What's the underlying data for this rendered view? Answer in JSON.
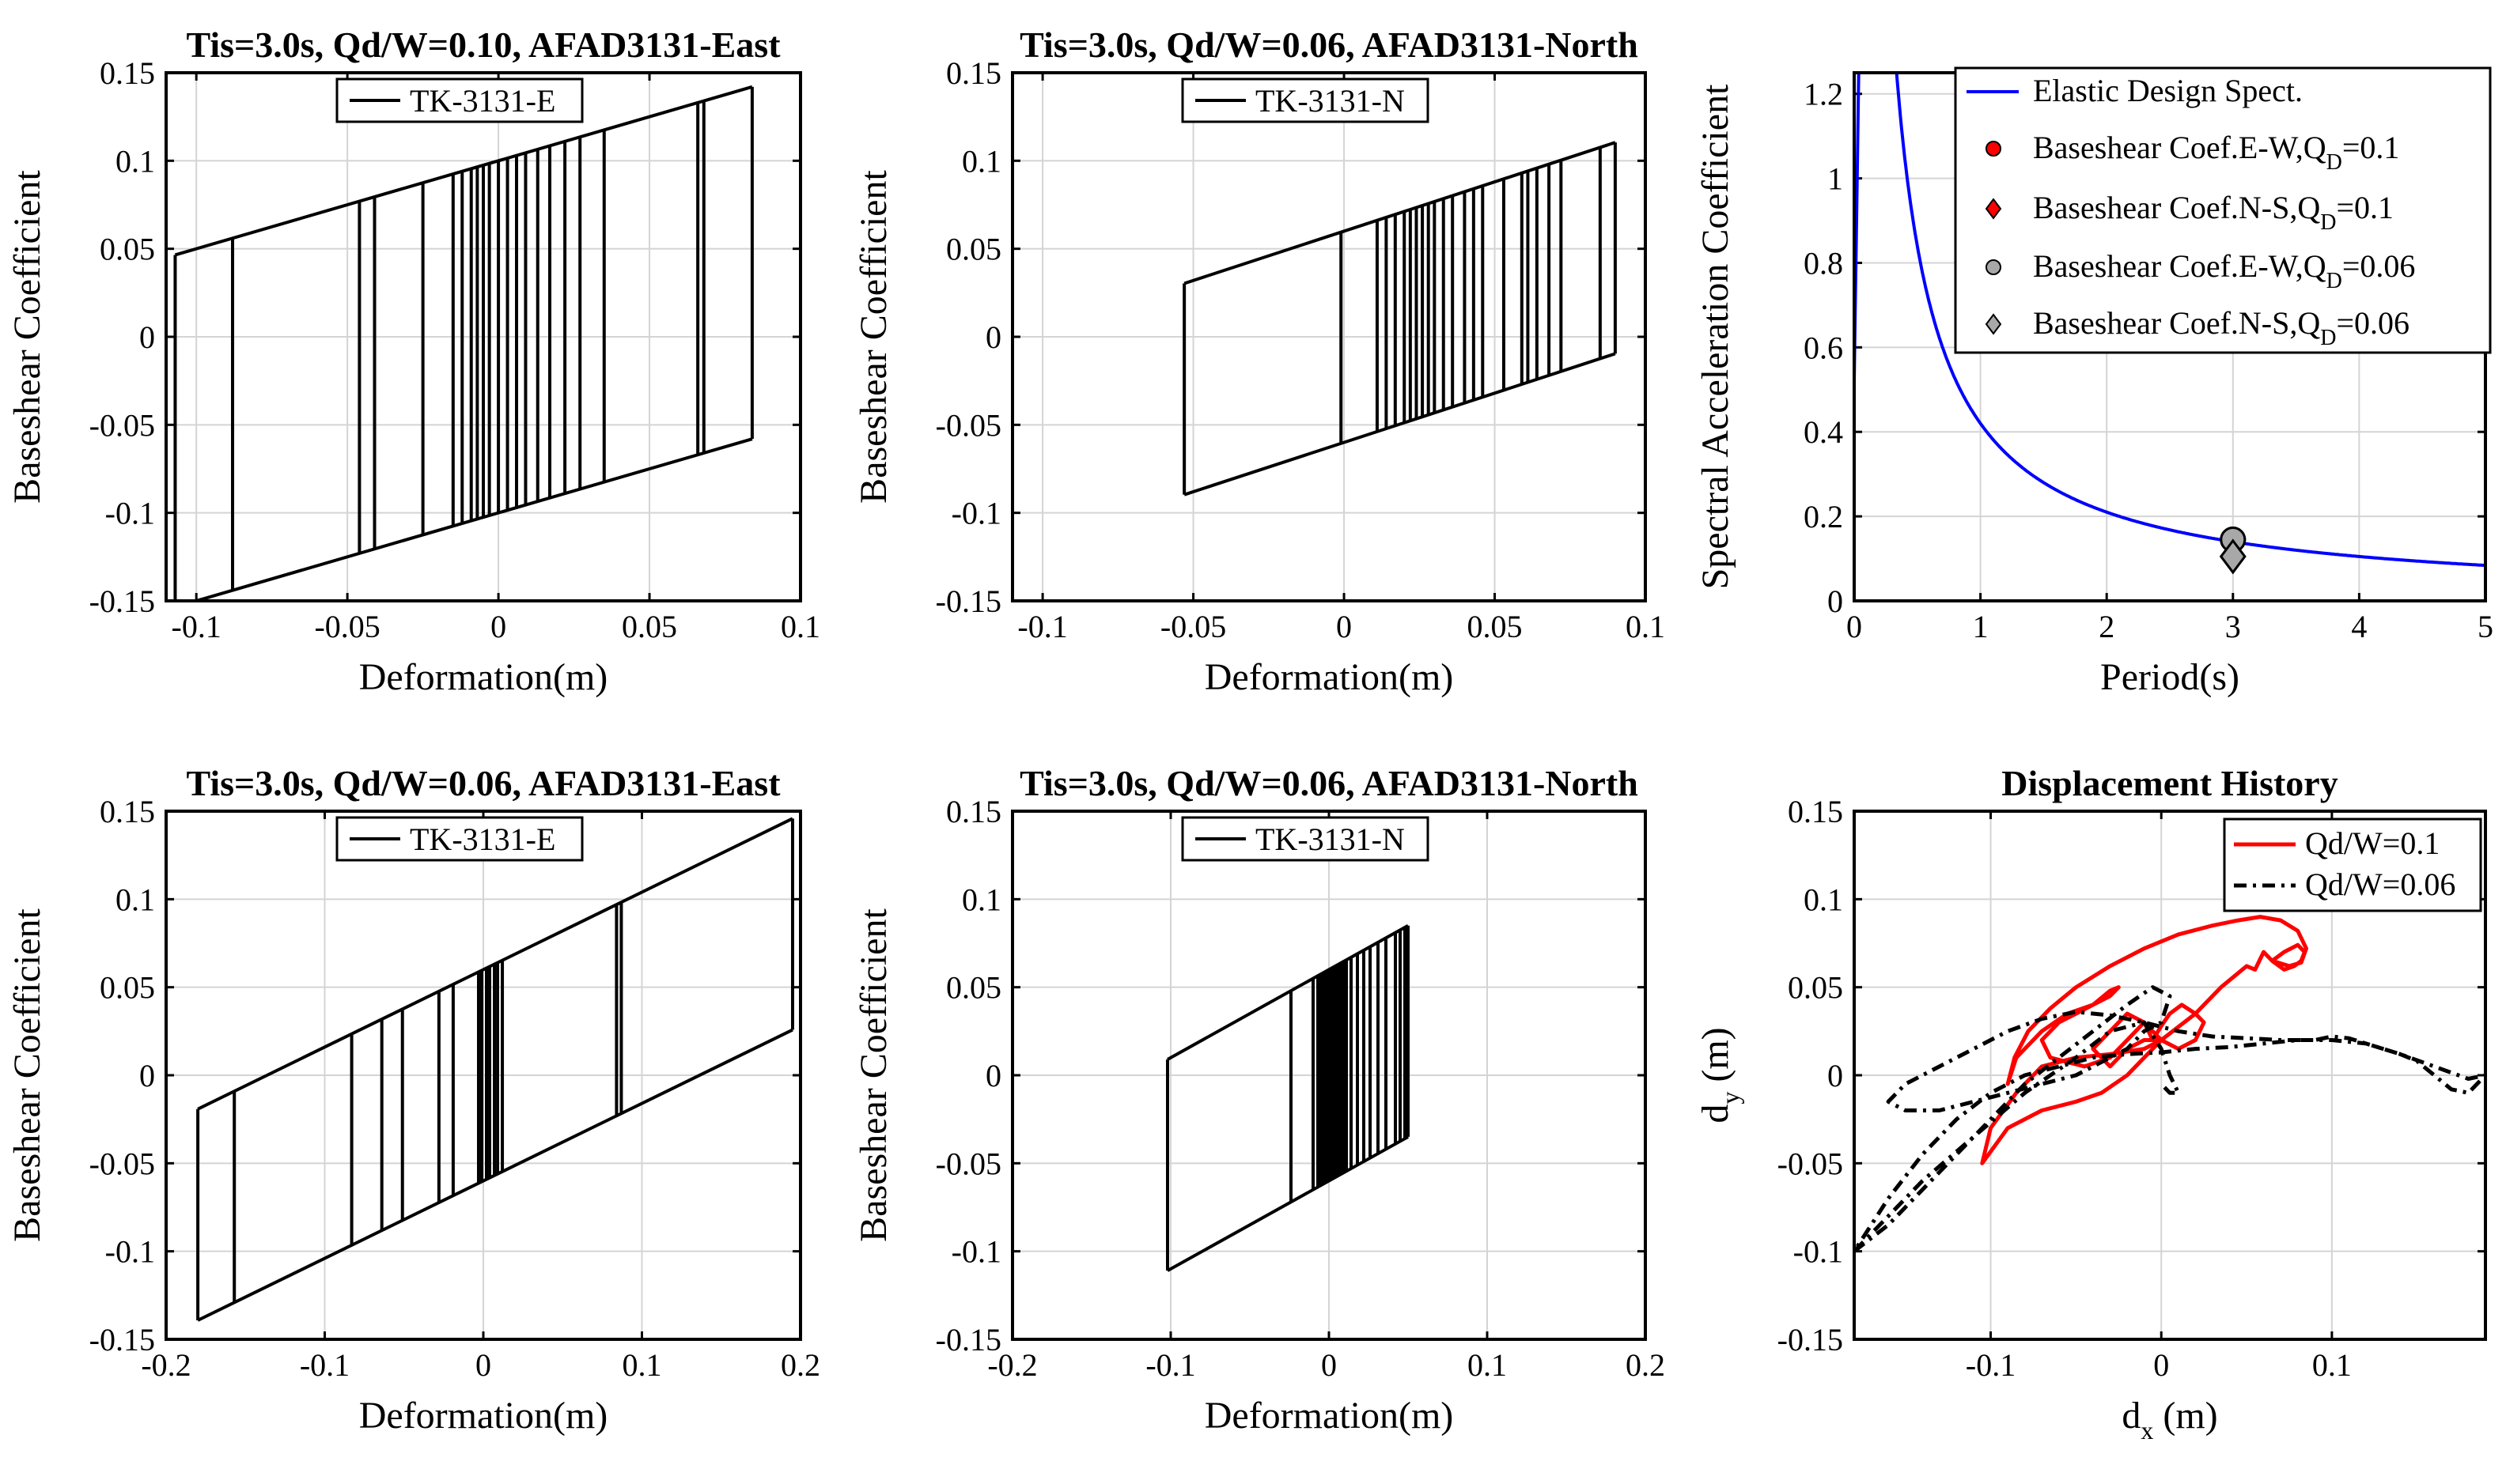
{
  "chart_data": [
    {
      "type": "line",
      "title": "Tis=3.0s, Qd/W=0.10, AFAD3131-East",
      "xlabel": "Deformation(m)",
      "ylabel": "Baseshear Coefficient",
      "xlim": [
        -0.11,
        0.1
      ],
      "ylim": [
        -0.15,
        0.15
      ],
      "xticks": [
        -0.1,
        -0.05,
        0,
        0.05,
        0.1
      ],
      "xtick_labels": [
        "-0.1",
        "-0.05",
        "0",
        "0.05",
        "0.1"
      ],
      "yticks": [
        -0.15,
        -0.1,
        -0.05,
        0,
        0.05,
        0.1,
        0.15
      ],
      "ytick_labels": [
        "-0.15",
        "-0.1",
        "-0.05",
        "0",
        "0.05",
        "0.1",
        "0.15"
      ],
      "grid": true,
      "legend": {
        "position": "top-center",
        "entries": [
          "TK-3131-E"
        ]
      },
      "series": [
        {
          "name": "TK-3131-E",
          "color": "#000000",
          "kind": "hysteresis",
          "slope": 0.5,
          "Qd": 0.1,
          "xmin": -0.107,
          "xmax": 0.084,
          "reversals": [
            -0.107,
            -0.088,
            -0.046,
            -0.041,
            -0.025,
            -0.015,
            -0.012,
            -0.009,
            -0.007,
            -0.005,
            -0.003,
            0,
            0.003,
            0.006,
            0.009,
            0.013,
            0.017,
            0.022,
            0.027,
            0.035,
            0.066,
            0.068,
            0.084
          ]
        }
      ]
    },
    {
      "type": "line",
      "title": "Tis=3.0s, Qd/W=0.06, AFAD3131-North",
      "xlabel": "Deformation(m)",
      "ylabel": "Baseshear Coefficient",
      "xlim": [
        -0.11,
        0.1
      ],
      "ylim": [
        -0.15,
        0.15
      ],
      "xticks": [
        -0.1,
        -0.05,
        0,
        0.05,
        0.1
      ],
      "xtick_labels": [
        "-0.1",
        "-0.05",
        "0",
        "0.05",
        "0.1"
      ],
      "yticks": [
        -0.15,
        -0.1,
        -0.05,
        0,
        0.05,
        0.1,
        0.15
      ],
      "ytick_labels": [
        "-0.15",
        "-0.1",
        "-0.05",
        "0",
        "0.05",
        "0.1",
        "0.15"
      ],
      "grid": true,
      "legend": {
        "position": "top-center",
        "entries": [
          "TK-3131-N"
        ]
      },
      "series": [
        {
          "name": "TK-3131-N",
          "color": "#000000",
          "kind": "hysteresis",
          "slope": 0.56,
          "Qd": 0.06,
          "xmin": -0.053,
          "xmax": 0.09,
          "reversals": [
            -0.053,
            -0.001,
            0.011,
            0.014,
            0.017,
            0.02,
            0.022,
            0.024,
            0.026,
            0.028,
            0.03,
            0.033,
            0.036,
            0.04,
            0.043,
            0.046,
            0.053,
            0.059,
            0.061,
            0.064,
            0.068,
            0.072,
            0.085,
            0.09
          ]
        }
      ]
    },
    {
      "type": "line",
      "title": "",
      "xlabel": "Period(s)",
      "ylabel": "Spectral Acceleration Coefficient",
      "xlim": [
        0,
        5
      ],
      "ylim": [
        0,
        1.25
      ],
      "xticks": [
        0,
        1,
        2,
        3,
        4,
        5
      ],
      "xtick_labels": [
        "0",
        "1",
        "2",
        "3",
        "4",
        "5"
      ],
      "yticks": [
        0,
        0.2,
        0.4,
        0.6,
        0.8,
        1,
        1.2
      ],
      "ytick_labels": [
        "0",
        "0.2",
        "0.4",
        "0.6",
        "0.8",
        "1",
        "1.2"
      ],
      "grid": true,
      "legend": {
        "position": "top-right",
        "entries": [
          "Elastic Design Spect.",
          "Baseshear Coef.E-W,Q",
          "Baseshear Coef.N-S,Q",
          "Baseshear Coef.E-W,Q",
          "Baseshear Coef.N-S,Q"
        ],
        "subscripts": [
          "",
          "D",
          "D",
          "D",
          "D"
        ],
        "suffixes": [
          "",
          "=0.1",
          "=0.1",
          "=0.06",
          "=0.06"
        ]
      },
      "series": [
        {
          "name": "Elastic Design Spect.",
          "color": "#0000ff",
          "kind": "spectrum",
          "SDS": 1.6,
          "SD1": 0.42,
          "TA": 0.053,
          "TB": 0.263,
          "SA0": 0.52
        },
        {
          "name": "Baseshear Coef.E-W,QD=0.1",
          "color": "#ff0000",
          "marker": "circle",
          "x": [
            3.0
          ],
          "y": [
            0.145
          ]
        },
        {
          "name": "Baseshear Coef.N-S,QD=0.1",
          "color": "#ff0000",
          "marker": "diamond",
          "x": [
            3.0
          ],
          "y": [
            0.105
          ]
        },
        {
          "name": "Baseshear Coef.E-W,QD=0.06",
          "color": "#a8a8a8",
          "marker": "circle",
          "x": [
            3.0
          ],
          "y": [
            0.145
          ]
        },
        {
          "name": "Baseshear Coef.N-S,QD=0.06",
          "color": "#a8a8a8",
          "marker": "diamond",
          "x": [
            3.0
          ],
          "y": [
            0.105
          ]
        }
      ]
    },
    {
      "type": "line",
      "title": "Tis=3.0s, Qd/W=0.06, AFAD3131-East",
      "xlabel": "Deformation(m)",
      "ylabel": "Baseshear Coefficient",
      "xlim": [
        -0.2,
        0.2
      ],
      "ylim": [
        -0.15,
        0.15
      ],
      "xticks": [
        -0.2,
        -0.1,
        0,
        0.1,
        0.2
      ],
      "xtick_labels": [
        "-0.2",
        "-0.1",
        "0",
        "0.1",
        "0.2"
      ],
      "yticks": [
        -0.15,
        -0.1,
        -0.05,
        0,
        0.05,
        0.1,
        0.15
      ],
      "ytick_labels": [
        "-0.15",
        "-0.1",
        "-0.05",
        "0",
        "0.05",
        "0.1",
        "0.15"
      ],
      "grid": true,
      "legend": {
        "position": "top-center",
        "entries": [
          "TK-3131-E"
        ]
      },
      "series": [
        {
          "name": "TK-3131-E",
          "color": "#000000",
          "kind": "hysteresis",
          "slope": 0.44,
          "Qd": 0.06,
          "xmin": -0.18,
          "xmax": 0.195,
          "reversals": [
            -0.18,
            -0.157,
            -0.083,
            -0.064,
            -0.051,
            -0.028,
            -0.019,
            -0.003,
            -0.001,
            0.002,
            0.004,
            0.007,
            0.009,
            0.012,
            0.084,
            0.087,
            0.195
          ]
        }
      ]
    },
    {
      "type": "line",
      "title": "Tis=3.0s, Qd/W=0.06, AFAD3131-North",
      "xlabel": "Deformation(m)",
      "ylabel": "Baseshear Coefficient",
      "xlim": [
        -0.2,
        0.2
      ],
      "ylim": [
        -0.15,
        0.15
      ],
      "xticks": [
        -0.2,
        -0.1,
        0,
        0.1,
        0.2
      ],
      "xtick_labels": [
        "-0.2",
        "-0.1",
        "0",
        "0.1",
        "0.2"
      ],
      "yticks": [
        -0.15,
        -0.1,
        -0.05,
        0,
        0.05,
        0.1,
        0.15
      ],
      "ytick_labels": [
        "-0.15",
        "-0.1",
        "-0.05",
        "0",
        "0.05",
        "0.1",
        "0.15"
      ],
      "grid": true,
      "legend": {
        "position": "top-center",
        "entries": [
          "TK-3131-N"
        ]
      },
      "series": [
        {
          "name": "TK-3131-N",
          "color": "#000000",
          "kind": "hysteresis",
          "slope": 0.5,
          "Qd": 0.06,
          "xmin": -0.102,
          "xmax": 0.05,
          "reversals": [
            -0.102,
            -0.024,
            -0.01,
            -0.007,
            -0.005,
            -0.003,
            -0.001,
            0.001,
            0.003,
            0.005,
            0.007,
            0.009,
            0.011,
            0.014,
            0.018,
            0.022,
            0.026,
            0.031,
            0.036,
            0.042,
            0.045,
            0.048,
            0.05
          ]
        }
      ]
    },
    {
      "type": "line",
      "title": "Displacement History",
      "xlabel": "d",
      "xlabel_sub": "x",
      "xlabel_suffix": " (m)",
      "ylabel": "d",
      "ylabel_sub": "y",
      "ylabel_suffix": " (m)",
      "xlim": [
        -0.18,
        0.19
      ],
      "ylim": [
        -0.15,
        0.15
      ],
      "xticks": [
        -0.1,
        0,
        0.1
      ],
      "xtick_labels": [
        "-0.1",
        "0",
        "0.1"
      ],
      "yticks": [
        -0.15,
        -0.1,
        -0.05,
        0,
        0.05,
        0.1,
        0.15
      ],
      "ytick_labels": [
        "-0.15",
        "-0.1",
        "-0.05",
        "0",
        "0.05",
        "0.1",
        "0.15"
      ],
      "grid": true,
      "legend": {
        "position": "top-right",
        "entries": [
          "Qd/W=0.1",
          "Qd/W=0.06"
        ]
      },
      "series": [
        {
          "name": "Qd/W=0.1",
          "color": "#ff0000",
          "style": "solid",
          "x": [
            0.0,
            -0.01,
            -0.02,
            -0.035,
            -0.05,
            -0.07,
            -0.09,
            -0.105,
            -0.1,
            -0.085,
            -0.07,
            -0.05,
            -0.03,
            -0.01,
            0.0,
            0.02,
            0.035,
            0.05,
            0.055,
            0.06,
            0.065,
            0.072,
            0.078,
            0.082,
            0.084,
            0.08,
            0.072,
            0.065,
            0.075,
            0.082,
            0.085,
            0.08,
            0.07,
            0.058,
            0.045,
            0.03,
            0.01,
            -0.01,
            -0.03,
            -0.05,
            -0.065,
            -0.078,
            -0.086,
            -0.09,
            -0.085,
            -0.07,
            -0.055,
            -0.04,
            -0.03,
            -0.025,
            -0.03,
            -0.04,
            -0.05,
            -0.06,
            -0.07,
            -0.065,
            -0.045,
            -0.03,
            -0.02,
            -0.01,
            -0.005,
            0.0,
            0.005,
            0.012,
            0.02,
            0.025,
            0.02,
            0.01,
            0.0,
            -0.01,
            -0.02,
            -0.03,
            -0.04,
            -0.03,
            -0.02,
            -0.01,
            0.0
          ],
          "y": [
            0.02,
            0.01,
            0.0,
            -0.01,
            -0.015,
            -0.02,
            -0.03,
            -0.05,
            -0.03,
            -0.01,
            0.005,
            0.01,
            0.012,
            0.015,
            0.02,
            0.035,
            0.05,
            0.062,
            0.06,
            0.07,
            0.065,
            0.06,
            0.062,
            0.065,
            0.07,
            0.074,
            0.07,
            0.065,
            0.062,
            0.064,
            0.072,
            0.082,
            0.088,
            0.09,
            0.088,
            0.085,
            0.08,
            0.072,
            0.062,
            0.05,
            0.038,
            0.025,
            0.01,
            -0.005,
            0.01,
            0.025,
            0.035,
            0.04,
            0.045,
            0.05,
            0.048,
            0.04,
            0.035,
            0.03,
            0.02,
            0.01,
            0.005,
            0.01,
            0.02,
            0.03,
            0.02,
            0.028,
            0.035,
            0.04,
            0.035,
            0.03,
            0.02,
            0.015,
            0.02,
            0.03,
            0.035,
            0.025,
            0.015,
            0.005,
            0.015,
            0.02,
            0.02
          ]
        },
        {
          "name": "Qd/W=0.06",
          "color": "#000000",
          "style": "dashdot",
          "x": [
            -0.18,
            -0.16,
            -0.14,
            -0.12,
            -0.1,
            -0.08,
            -0.06,
            -0.04,
            -0.02,
            -0.005,
            0.005,
            0.0,
            -0.01,
            -0.02,
            -0.03,
            -0.05,
            -0.07,
            -0.09,
            -0.11,
            -0.13,
            -0.15,
            -0.16,
            -0.15,
            -0.13,
            -0.11,
            -0.09,
            -0.07,
            -0.05,
            -0.03,
            -0.01,
            0.01,
            0.03,
            0.05,
            0.07,
            0.09,
            0.1,
            0.11,
            0.12,
            0.13,
            0.14,
            0.15,
            0.16,
            0.17,
            0.18,
            0.19,
            0.18,
            0.16,
            0.14,
            0.12,
            0.1,
            0.08,
            0.06,
            0.04,
            0.02,
            0.0,
            -0.02,
            -0.04,
            -0.06,
            -0.08,
            -0.1,
            -0.12,
            -0.14,
            -0.16,
            -0.18,
            -0.165,
            -0.14,
            -0.11,
            -0.08,
            -0.05,
            -0.03,
            -0.01,
            0.0,
            0.005,
            0.01,
            0.005,
            0.0
          ],
          "y": [
            -0.1,
            -0.085,
            -0.065,
            -0.045,
            -0.025,
            -0.005,
            0.01,
            0.025,
            0.04,
            0.05,
            0.045,
            0.03,
            0.025,
            0.015,
            0.01,
            0.0,
            -0.005,
            -0.01,
            -0.015,
            -0.02,
            -0.02,
            -0.015,
            -0.005,
            0.005,
            0.015,
            0.025,
            0.032,
            0.036,
            0.034,
            0.03,
            0.025,
            0.022,
            0.021,
            0.02,
            0.02,
            0.022,
            0.021,
            0.018,
            0.015,
            0.012,
            0.008,
            0.0,
            -0.008,
            -0.01,
            0.0,
            -0.002,
            0.005,
            0.012,
            0.018,
            0.02,
            0.02,
            0.018,
            0.016,
            0.015,
            0.013,
            0.012,
            0.01,
            0.005,
            0.0,
            -0.01,
            -0.025,
            -0.045,
            -0.07,
            -0.1,
            -0.085,
            -0.06,
            -0.035,
            -0.01,
            0.01,
            0.025,
            0.03,
            0.015,
            0.0,
            -0.01,
            -0.01,
            -0.005
          ]
        }
      ]
    }
  ]
}
